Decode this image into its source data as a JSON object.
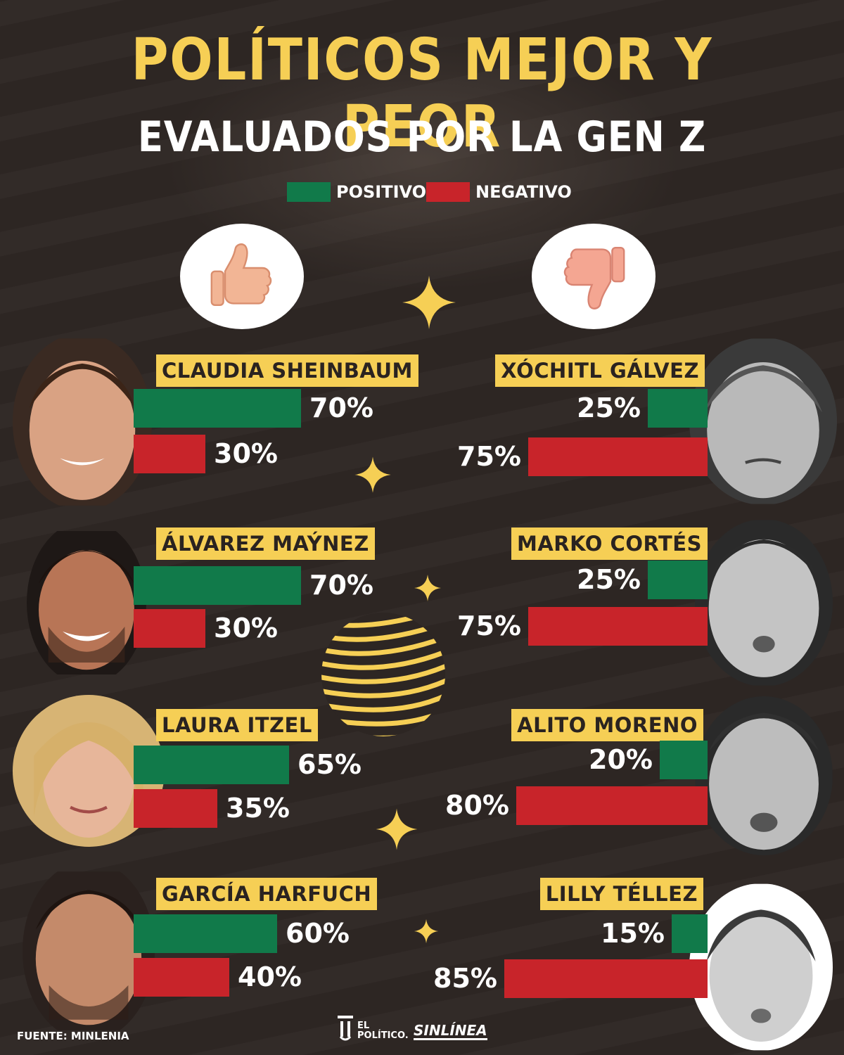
{
  "title": "POLÍTICOS MEJOR Y PEOR",
  "subtitle": "EVALUADOS POR LA GEN Z",
  "legend": {
    "positive": "POSITIVO",
    "negative": "NEGATIVO"
  },
  "colors": {
    "positive": "#117a4a",
    "negative": "#c8242a",
    "accent": "#f6cf55",
    "background": "#2d2623"
  },
  "icons": {
    "best": "thumbs-up-icon",
    "worst": "thumbs-down-icon"
  },
  "source": "FUENTE: MINLENIA",
  "brands": {
    "primary": "EL POLÍTICO.",
    "secondary": "SINLÍNEA"
  },
  "chart_data": {
    "type": "bar",
    "series": [
      {
        "name": "POSITIVO"
      },
      {
        "name": "NEGATIVO"
      }
    ],
    "best": [
      {
        "name": "CLAUDIA SHEINBAUM",
        "positive": 70,
        "negative": 30,
        "positive_label": "70%",
        "negative_label": "30%"
      },
      {
        "name": "ÁLVAREZ MAÝNEZ",
        "positive": 70,
        "negative": 30,
        "positive_label": "70%",
        "negative_label": "30%"
      },
      {
        "name": "LAURA ITZEL",
        "positive": 65,
        "negative": 35,
        "positive_label": "65%",
        "negative_label": "35%"
      },
      {
        "name": "GARCÍA HARFUCH",
        "positive": 60,
        "negative": 40,
        "positive_label": "60%",
        "negative_label": "40%"
      }
    ],
    "worst": [
      {
        "name": "XÓCHITL GÁLVEZ",
        "positive": 25,
        "negative": 75,
        "positive_label": "25%",
        "negative_label": "75%"
      },
      {
        "name": "MARKO CORTÉS",
        "positive": 25,
        "negative": 75,
        "positive_label": "25%",
        "negative_label": "75%"
      },
      {
        "name": "ALITO MORENO",
        "positive": 20,
        "negative": 80,
        "positive_label": "20%",
        "negative_label": "80%"
      },
      {
        "name": "LILLY TÉLLEZ",
        "positive": 15,
        "negative": 85,
        "positive_label": "15%",
        "negative_label": "85%"
      }
    ]
  }
}
